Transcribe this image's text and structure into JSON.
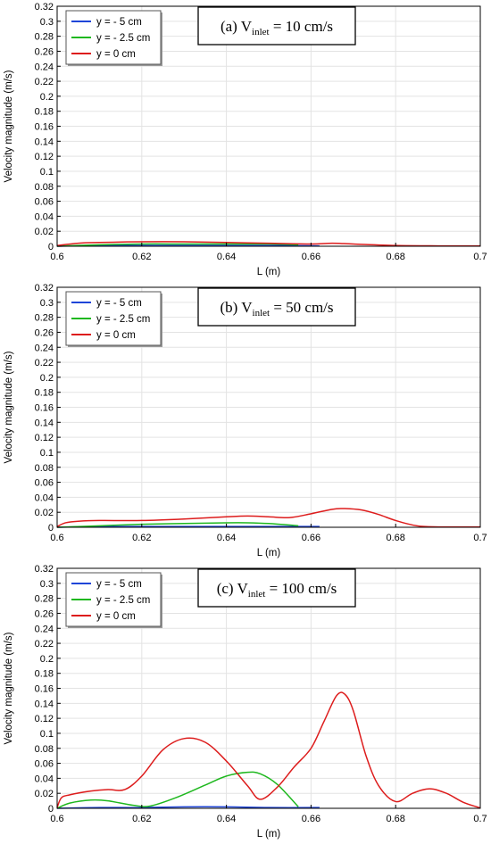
{
  "chart_data": [
    {
      "type": "line",
      "annotation": {
        "prefix": "(a) V",
        "sub": "inlet",
        "suffix": " = 10 cm/s"
      },
      "xlabel": "L (m)",
      "ylabel": "Velocity magnitude (m/s)",
      "xlim": [
        0.6,
        0.7
      ],
      "ylim": [
        0,
        0.32
      ],
      "xticks": [
        "0.6",
        "0.62",
        "0.64",
        "0.66",
        "0.68",
        "0.7"
      ],
      "yticks": [
        "0",
        "0.02",
        "0.04",
        "0.06",
        "0.08",
        "0.1",
        "0.12",
        "0.14",
        "0.16",
        "0.18",
        "0.2",
        "0.22",
        "0.24",
        "0.26",
        "0.28",
        "0.3",
        "0.32"
      ],
      "grid": true,
      "legend_position": "top-left",
      "series": [
        {
          "name": "y = - 5 cm",
          "color": "#1f45d8",
          "x": [
            0.6,
            0.61,
            0.62,
            0.63,
            0.64,
            0.65,
            0.662
          ],
          "y": [
            0,
            0.001,
            0.001,
            0.001,
            0.001,
            0.001,
            0.0005
          ]
        },
        {
          "name": "y = - 2.5 cm",
          "color": "#1fb81f",
          "x": [
            0.6,
            0.61,
            0.62,
            0.63,
            0.64,
            0.65,
            0.657
          ],
          "y": [
            0,
            0.002,
            0.003,
            0.003,
            0.003,
            0.003,
            0.002
          ]
        },
        {
          "name": "y = 0 cm",
          "color": "#dd1c1c",
          "x": [
            0.6,
            0.605,
            0.61,
            0.62,
            0.63,
            0.64,
            0.65,
            0.66,
            0.665,
            0.67,
            0.68,
            0.69,
            0.7
          ],
          "y": [
            0.001,
            0.004,
            0.005,
            0.006,
            0.006,
            0.005,
            0.004,
            0.003,
            0.004,
            0.003,
            0.001,
            0.0005,
            0.0005
          ]
        }
      ]
    },
    {
      "type": "line",
      "annotation": {
        "prefix": "(b) V",
        "sub": "inlet",
        "suffix": " = 50 cm/s"
      },
      "xlabel": "L (m)",
      "ylabel": "Velocity magnitude (m/s)",
      "xlim": [
        0.6,
        0.7
      ],
      "ylim": [
        0,
        0.32
      ],
      "xticks": [
        "0.6",
        "0.62",
        "0.64",
        "0.66",
        "0.68",
        "0.7"
      ],
      "yticks": [
        "0",
        "0.02",
        "0.04",
        "0.06",
        "0.08",
        "0.1",
        "0.12",
        "0.14",
        "0.16",
        "0.18",
        "0.2",
        "0.22",
        "0.24",
        "0.26",
        "0.28",
        "0.3",
        "0.32"
      ],
      "grid": true,
      "legend_position": "top-left",
      "series": [
        {
          "name": "y = - 5 cm",
          "color": "#1f45d8",
          "x": [
            0.6,
            0.61,
            0.62,
            0.63,
            0.64,
            0.65,
            0.662
          ],
          "y": [
            0,
            0.001,
            0.001,
            0.001,
            0.001,
            0.001,
            0.001
          ]
        },
        {
          "name": "y = - 2.5 cm",
          "color": "#1fb81f",
          "x": [
            0.6,
            0.61,
            0.62,
            0.63,
            0.64,
            0.645,
            0.65,
            0.657
          ],
          "y": [
            0,
            0.002,
            0.004,
            0.005,
            0.006,
            0.006,
            0.005,
            0.002
          ]
        },
        {
          "name": "y = 0 cm",
          "color": "#dd1c1c",
          "x": [
            0.6,
            0.602,
            0.605,
            0.61,
            0.62,
            0.63,
            0.64,
            0.645,
            0.65,
            0.655,
            0.66,
            0.665,
            0.668,
            0.672,
            0.676,
            0.68,
            0.685,
            0.69,
            0.7
          ],
          "y": [
            0.001,
            0.006,
            0.008,
            0.009,
            0.009,
            0.011,
            0.014,
            0.015,
            0.014,
            0.013,
            0.018,
            0.024,
            0.025,
            0.023,
            0.017,
            0.009,
            0.002,
            0.0005,
            0.0005
          ]
        }
      ]
    },
    {
      "type": "line",
      "annotation": {
        "prefix": "(c) V",
        "sub": "inlet",
        "suffix": " = 100 cm/s"
      },
      "xlabel": "L (m)",
      "ylabel": "Velocity magnitude (m/s)",
      "xlim": [
        0.6,
        0.7
      ],
      "ylim": [
        0,
        0.32
      ],
      "xticks": [
        "0.6",
        "0.62",
        "0.64",
        "0.66",
        "0.68",
        "0.7"
      ],
      "yticks": [
        "0",
        "0.02",
        "0.04",
        "0.06",
        "0.08",
        "0.1",
        "0.12",
        "0.14",
        "0.16",
        "0.18",
        "0.2",
        "0.22",
        "0.24",
        "0.26",
        "0.28",
        "0.3",
        "0.32"
      ],
      "grid": true,
      "legend_position": "top-left",
      "series": [
        {
          "name": "y = - 5 cm",
          "color": "#1f45d8",
          "x": [
            0.6,
            0.61,
            0.62,
            0.63,
            0.64,
            0.65,
            0.662
          ],
          "y": [
            0,
            0.001,
            0.001,
            0.002,
            0.002,
            0.001,
            0.001
          ]
        },
        {
          "name": "y = - 2.5 cm",
          "color": "#1fb81f",
          "x": [
            0.6,
            0.603,
            0.608,
            0.612,
            0.618,
            0.622,
            0.628,
            0.635,
            0.64,
            0.645,
            0.648,
            0.652,
            0.657
          ],
          "y": [
            0,
            0.007,
            0.011,
            0.01,
            0.004,
            0.003,
            0.014,
            0.031,
            0.043,
            0.048,
            0.046,
            0.032,
            0.002
          ]
        },
        {
          "name": "y = 0 cm",
          "color": "#dd1c1c",
          "x": [
            0.6,
            0.601,
            0.603,
            0.608,
            0.612,
            0.616,
            0.62,
            0.625,
            0.63,
            0.635,
            0.64,
            0.645,
            0.648,
            0.652,
            0.656,
            0.66,
            0.663,
            0.666,
            0.668,
            0.67,
            0.673,
            0.676,
            0.68,
            0.684,
            0.688,
            0.692,
            0.696,
            0.7
          ],
          "y": [
            0.001,
            0.014,
            0.018,
            0.023,
            0.025,
            0.025,
            0.043,
            0.078,
            0.093,
            0.088,
            0.063,
            0.03,
            0.012,
            0.028,
            0.055,
            0.08,
            0.115,
            0.15,
            0.152,
            0.13,
            0.07,
            0.03,
            0.009,
            0.02,
            0.026,
            0.02,
            0.008,
            0.0005
          ]
        }
      ]
    }
  ]
}
